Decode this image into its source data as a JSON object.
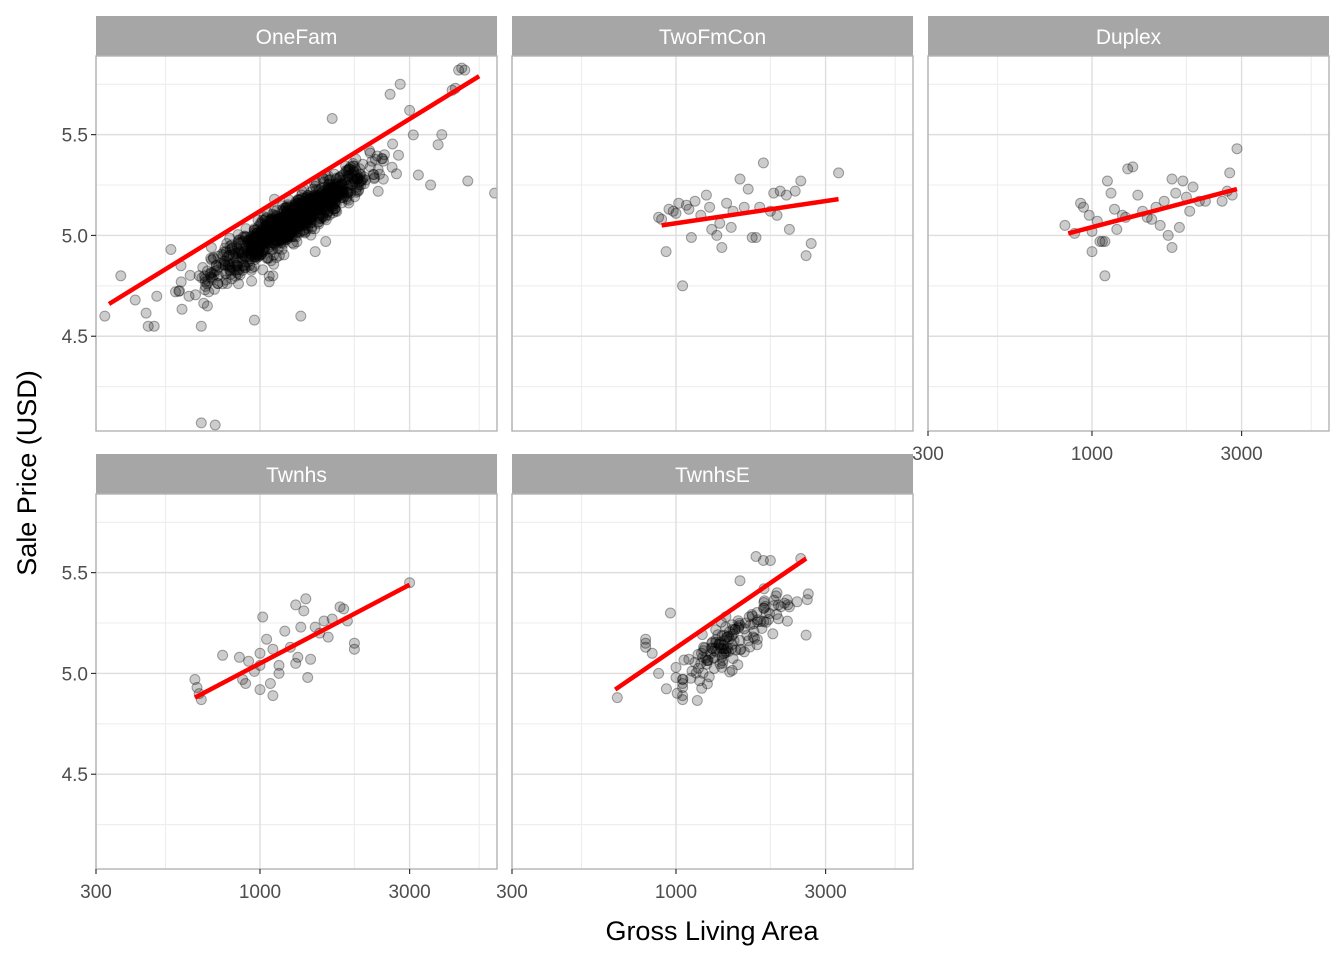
{
  "chart_data": {
    "type": "scatter",
    "facet_by": "building type",
    "xlabel": "Gross Living Area",
    "ylabel": "Sale Price (USD)",
    "x_scale": "log10",
    "x_range": [
      300,
      5700
    ],
    "x_ticks": [
      300,
      1000,
      3000
    ],
    "x_tick_labels": [
      "300",
      "1000",
      "3000"
    ],
    "y_range": [
      4.03,
      5.89
    ],
    "y_ticks": [
      4.5,
      5.0,
      5.5
    ],
    "y_tick_labels": [
      "4.5",
      "5.0",
      "5.5"
    ],
    "grid": true,
    "point_color": "#000000",
    "point_alpha": 0.2,
    "fit_line_color": "#ff0000",
    "strip_color": "#a6a6a6",
    "panels": [
      {
        "label": "OneFam",
        "fit": {
          "x": [
            330,
            5000
          ],
          "y": [
            4.66,
            5.79
          ]
        },
        "cloud": {
          "n": 1100,
          "x_log_range": [
            2.82,
            3.38
          ],
          "slope": 1.0,
          "intercept": 1.97,
          "spread": 0.05
        },
        "points": [
          [
            320,
            4.6
          ],
          [
            360,
            4.8
          ],
          [
            400,
            4.68
          ],
          [
            440,
            4.55
          ],
          [
            460,
            4.55
          ],
          [
            520,
            4.93
          ],
          [
            560,
            4.85
          ],
          [
            640,
            4.8
          ],
          [
            650,
            4.55
          ],
          [
            680,
            4.65
          ],
          [
            700,
            4.94
          ],
          [
            760,
            4.76
          ],
          [
            780,
            4.81
          ],
          [
            960,
            4.58
          ],
          [
            1020,
            4.83
          ],
          [
            1070,
            4.77
          ],
          [
            1100,
            4.8
          ],
          [
            1350,
            4.6
          ],
          [
            1500,
            4.92
          ],
          [
            1620,
            4.97
          ],
          [
            1700,
            5.58
          ],
          [
            3200,
            5.3
          ],
          [
            3500,
            5.25
          ],
          [
            3700,
            5.45
          ],
          [
            3800,
            5.5
          ],
          [
            4100,
            5.72
          ],
          [
            4200,
            5.73
          ],
          [
            4300,
            5.82
          ],
          [
            4400,
            5.83
          ],
          [
            4500,
            5.82
          ],
          [
            4600,
            5.27
          ],
          [
            5600,
            5.21
          ],
          [
            650,
            4.07
          ],
          [
            720,
            4.06
          ],
          [
            3000,
            5.62
          ],
          [
            2600,
            5.7
          ],
          [
            2800,
            5.75
          ]
        ]
      },
      {
        "label": "TwoFmCon",
        "fit": {
          "x": [
            900,
            3300
          ],
          "y": [
            5.05,
            5.18
          ]
        },
        "points": [
          [
            880,
            5.09
          ],
          [
            900,
            5.08
          ],
          [
            930,
            4.92
          ],
          [
            950,
            5.13
          ],
          [
            980,
            5.12
          ],
          [
            1000,
            5.11
          ],
          [
            1020,
            5.16
          ],
          [
            1050,
            4.75
          ],
          [
            1080,
            5.15
          ],
          [
            1100,
            5.13
          ],
          [
            1120,
            4.99
          ],
          [
            1150,
            5.17
          ],
          [
            1200,
            5.1
          ],
          [
            1250,
            5.2
          ],
          [
            1280,
            5.14
          ],
          [
            1300,
            5.03
          ],
          [
            1350,
            5.0
          ],
          [
            1380,
            5.06
          ],
          [
            1400,
            4.94
          ],
          [
            1450,
            5.16
          ],
          [
            1500,
            5.04
          ],
          [
            1520,
            5.12
          ],
          [
            1600,
            5.28
          ],
          [
            1650,
            5.14
          ],
          [
            1700,
            5.23
          ],
          [
            1750,
            4.99
          ],
          [
            1800,
            4.99
          ],
          [
            1850,
            5.14
          ],
          [
            1900,
            5.36
          ],
          [
            2000,
            5.12
          ],
          [
            2050,
            5.21
          ],
          [
            2100,
            5.1
          ],
          [
            2150,
            5.22
          ],
          [
            2300,
            5.03
          ],
          [
            2400,
            5.22
          ],
          [
            2500,
            5.27
          ],
          [
            2600,
            4.9
          ],
          [
            2700,
            4.96
          ],
          [
            3300,
            5.31
          ],
          [
            2250,
            5.2
          ]
        ]
      },
      {
        "label": "Duplex",
        "fit": {
          "x": [
            840,
            2900
          ],
          "y": [
            5.01,
            5.23
          ]
        },
        "points": [
          [
            820,
            5.05
          ],
          [
            880,
            5.01
          ],
          [
            920,
            5.16
          ],
          [
            940,
            5.14
          ],
          [
            980,
            5.1
          ],
          [
            1000,
            5.02
          ],
          [
            1000,
            4.92
          ],
          [
            1040,
            5.07
          ],
          [
            1060,
            4.97
          ],
          [
            1080,
            4.97
          ],
          [
            1100,
            4.8
          ],
          [
            1100,
            4.97
          ],
          [
            1120,
            5.27
          ],
          [
            1150,
            5.21
          ],
          [
            1180,
            5.13
          ],
          [
            1200,
            5.03
          ],
          [
            1250,
            5.1
          ],
          [
            1280,
            5.09
          ],
          [
            1300,
            5.33
          ],
          [
            1350,
            5.34
          ],
          [
            1400,
            5.2
          ],
          [
            1450,
            5.12
          ],
          [
            1500,
            5.09
          ],
          [
            1550,
            5.08
          ],
          [
            1600,
            5.14
          ],
          [
            1650,
            5.05
          ],
          [
            1700,
            5.17
          ],
          [
            1750,
            5.0
          ],
          [
            1800,
            4.94
          ],
          [
            1800,
            5.28
          ],
          [
            1850,
            5.21
          ],
          [
            1900,
            5.04
          ],
          [
            1950,
            5.27
          ],
          [
            2000,
            5.19
          ],
          [
            2050,
            5.12
          ],
          [
            2100,
            5.24
          ],
          [
            2200,
            5.17
          ],
          [
            2300,
            5.17
          ],
          [
            2600,
            5.17
          ],
          [
            2700,
            5.22
          ],
          [
            2800,
            5.2
          ],
          [
            2900,
            5.43
          ],
          [
            2750,
            5.31
          ]
        ]
      },
      {
        "label": "Twnhs",
        "fit": {
          "x": [
            620,
            3000
          ],
          "y": [
            4.88,
            5.44
          ]
        },
        "points": [
          [
            620,
            4.97
          ],
          [
            630,
            4.93
          ],
          [
            640,
            4.9
          ],
          [
            650,
            4.87
          ],
          [
            760,
            5.09
          ],
          [
            860,
            5.08
          ],
          [
            880,
            4.97
          ],
          [
            900,
            4.95
          ],
          [
            920,
            5.06
          ],
          [
            960,
            5.01
          ],
          [
            1000,
            4.92
          ],
          [
            1000,
            5.1
          ],
          [
            1000,
            5.04
          ],
          [
            1020,
            5.28
          ],
          [
            1050,
            5.17
          ],
          [
            1080,
            4.95
          ],
          [
            1100,
            4.89
          ],
          [
            1100,
            5.12
          ],
          [
            1150,
            5.04
          ],
          [
            1200,
            5.21
          ],
          [
            1250,
            5.13
          ],
          [
            1300,
            5.34
          ],
          [
            1320,
            5.08
          ],
          [
            1350,
            5.23
          ],
          [
            1380,
            5.31
          ],
          [
            1400,
            5.37
          ],
          [
            1420,
            4.98
          ],
          [
            1450,
            5.07
          ],
          [
            1500,
            5.23
          ],
          [
            1550,
            5.2
          ],
          [
            1600,
            5.26
          ],
          [
            1650,
            5.18
          ],
          [
            1700,
            5.27
          ],
          [
            1800,
            5.33
          ],
          [
            1850,
            5.32
          ],
          [
            1900,
            5.26
          ],
          [
            2000,
            5.12
          ],
          [
            2000,
            5.15
          ],
          [
            3000,
            5.45
          ],
          [
            1300,
            5.05
          ],
          [
            1150,
            5.0
          ]
        ]
      },
      {
        "label": "TwnhsE",
        "fit": {
          "x": [
            640,
            2600
          ],
          "y": [
            4.92,
            5.57
          ]
        },
        "cloud": {
          "n": 140,
          "x_log_range": [
            2.98,
            3.38
          ],
          "slope": 1.05,
          "intercept": 1.82,
          "spread": 0.06
        },
        "points": [
          [
            650,
            4.88
          ],
          [
            800,
            5.17
          ],
          [
            800,
            5.15
          ],
          [
            800,
            5.13
          ],
          [
            840,
            5.1
          ],
          [
            880,
            5.0
          ],
          [
            960,
            5.3
          ],
          [
            1000,
            5.03
          ],
          [
            1000,
            4.98
          ],
          [
            1050,
            4.97
          ],
          [
            1050,
            4.95
          ],
          [
            1050,
            4.93
          ],
          [
            1050,
            4.89
          ],
          [
            1050,
            4.87
          ],
          [
            1100,
            5.07
          ],
          [
            1200,
            5.05
          ],
          [
            1300,
            5.15
          ],
          [
            1400,
            5.03
          ],
          [
            1600,
            5.46
          ],
          [
            1800,
            5.58
          ],
          [
            1900,
            5.56
          ],
          [
            2000,
            5.56
          ],
          [
            2100,
            5.4
          ],
          [
            2300,
            5.33
          ],
          [
            2500,
            5.57
          ],
          [
            2600,
            5.19
          ]
        ]
      }
    ]
  }
}
